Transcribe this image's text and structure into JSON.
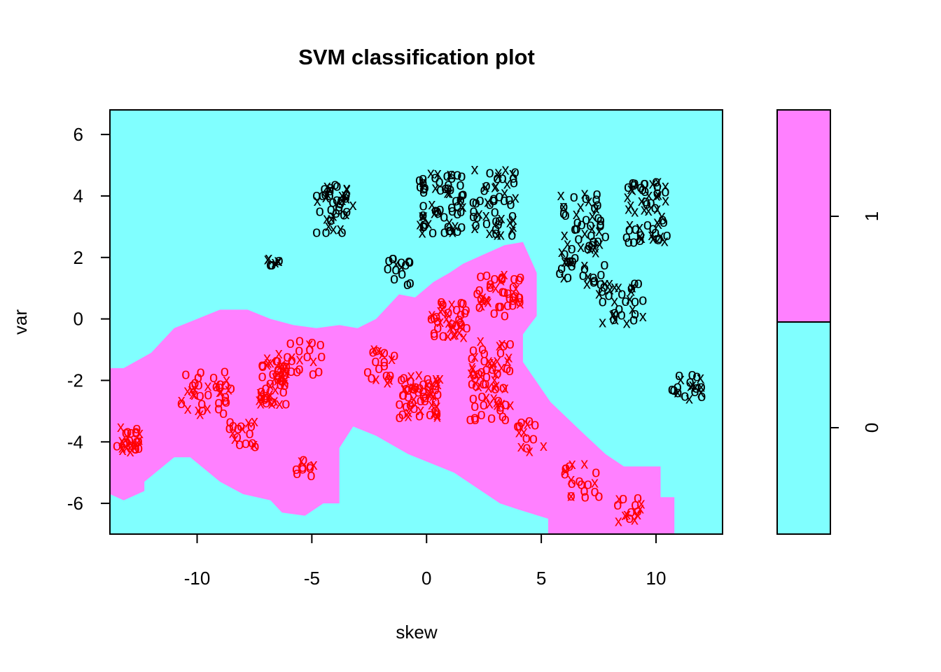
{
  "chart_data": {
    "type": "scatter",
    "title": "SVM classification plot",
    "xlabel": "skew",
    "ylabel": "var",
    "xlim": [
      -13.8,
      12.9
    ],
    "ylim": [
      -7.0,
      6.8
    ],
    "xticks": [
      -10,
      -5,
      0,
      5,
      10
    ],
    "xtick_labels": [
      "-10",
      "-5",
      "0",
      "5",
      "10"
    ],
    "yticks": [
      -6,
      -4,
      -2,
      0,
      2,
      4,
      6
    ],
    "ytick_labels": [
      "-6",
      "-4",
      "-2",
      "0",
      "2",
      "4",
      "6"
    ],
    "grid": false,
    "colors": {
      "class0_fill": "#80ffff",
      "class1_fill": "#ff80ff",
      "class0_points": "#000000",
      "class1_points": "#ff0000"
    },
    "legend": {
      "placement": "right",
      "labels": [
        "1",
        "0"
      ]
    },
    "decision_region_class1": [
      [
        -13.8,
        -1.6
      ],
      [
        -13.2,
        -1.6
      ],
      [
        -12.0,
        -1.1
      ],
      [
        -11.0,
        -0.3
      ],
      [
        -10.0,
        0.0
      ],
      [
        -9.0,
        0.3
      ],
      [
        -7.8,
        0.3
      ],
      [
        -6.8,
        0.0
      ],
      [
        -5.8,
        -0.2
      ],
      [
        -4.8,
        -0.3
      ],
      [
        -3.8,
        -0.2
      ],
      [
        -3.0,
        -0.3
      ],
      [
        -2.2,
        0.0
      ],
      [
        -1.2,
        0.8
      ],
      [
        -0.5,
        0.7
      ],
      [
        0.3,
        1.2
      ],
      [
        1.0,
        1.5
      ],
      [
        1.6,
        1.8
      ],
      [
        2.5,
        2.1
      ],
      [
        3.4,
        2.4
      ],
      [
        4.2,
        2.5
      ],
      [
        4.8,
        1.5
      ],
      [
        4.8,
        0.1
      ],
      [
        4.4,
        -0.3
      ],
      [
        4.2,
        -0.5
      ],
      [
        4.2,
        -1.4
      ],
      [
        5.4,
        -2.7
      ],
      [
        6.8,
        -3.7
      ],
      [
        7.8,
        -4.4
      ],
      [
        8.6,
        -4.8
      ],
      [
        10.2,
        -4.8
      ],
      [
        10.2,
        -5.8
      ],
      [
        10.8,
        -5.8
      ],
      [
        10.8,
        -7.0
      ],
      [
        5.3,
        -7.0
      ],
      [
        5.3,
        -6.5
      ],
      [
        4.0,
        -6.2
      ],
      [
        3.2,
        -6.0
      ],
      [
        1.2,
        -5.0
      ],
      [
        -0.8,
        -4.4
      ],
      [
        -2.2,
        -3.8
      ],
      [
        -3.2,
        -3.5
      ],
      [
        -3.8,
        -4.2
      ],
      [
        -3.8,
        -6.0
      ],
      [
        -4.5,
        -6.0
      ],
      [
        -5.3,
        -6.4
      ],
      [
        -6.3,
        -6.3
      ],
      [
        -6.8,
        -5.9
      ],
      [
        -8.0,
        -5.7
      ],
      [
        -9.0,
        -5.3
      ],
      [
        -10.3,
        -4.5
      ],
      [
        -11.0,
        -4.5
      ],
      [
        -12.3,
        -5.3
      ],
      [
        -12.3,
        -5.6
      ],
      [
        -13.2,
        -5.9
      ],
      [
        -13.8,
        -5.7
      ]
    ]
  }
}
